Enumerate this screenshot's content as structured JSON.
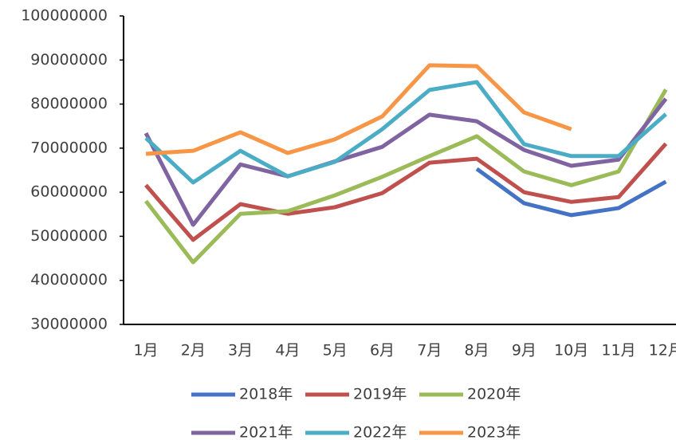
{
  "chart_data": {
    "type": "line",
    "categories": [
      "1月",
      "2月",
      "3月",
      "4月",
      "5月",
      "6月",
      "7月",
      "8月",
      "9月",
      "10月",
      "11月",
      "12月"
    ],
    "series": [
      {
        "name": "2018年",
        "color": "#4472c4",
        "values": [
          null,
          null,
          null,
          null,
          null,
          null,
          null,
          65300000,
          57500000,
          54800000,
          56400000,
          62400000
        ]
      },
      {
        "name": "2019年",
        "color": "#c0504d",
        "values": [
          61600000,
          49200000,
          57300000,
          55100000,
          56600000,
          59800000,
          66700000,
          67600000,
          60000000,
          57800000,
          58900000,
          71000000
        ]
      },
      {
        "name": "2020年",
        "color": "#9bbb59",
        "values": [
          58000000,
          44100000,
          55100000,
          55700000,
          59300000,
          63500000,
          68200000,
          72700000,
          64700000,
          61600000,
          64700000,
          83300000
        ]
      },
      {
        "name": "2021年",
        "color": "#8064a2",
        "values": [
          73400000,
          52600000,
          66300000,
          63600000,
          67000000,
          70300000,
          77600000,
          76100000,
          69600000,
          66000000,
          67400000,
          81200000
        ]
      },
      {
        "name": "2022年",
        "color": "#4bacc6",
        "values": [
          72300000,
          62200000,
          69400000,
          63600000,
          66900000,
          74300000,
          83200000,
          85000000,
          70900000,
          68200000,
          68200000,
          77700000
        ]
      },
      {
        "name": "2023年",
        "color": "#f79646",
        "values": [
          68700000,
          69400000,
          73600000,
          68900000,
          72000000,
          77200000,
          88800000,
          88600000,
          78100000,
          74300000,
          null,
          null
        ]
      }
    ],
    "ylim": [
      30000000,
      100000000
    ],
    "yticks": [
      30000000,
      40000000,
      50000000,
      60000000,
      70000000,
      80000000,
      90000000,
      100000000
    ],
    "grid": false
  }
}
